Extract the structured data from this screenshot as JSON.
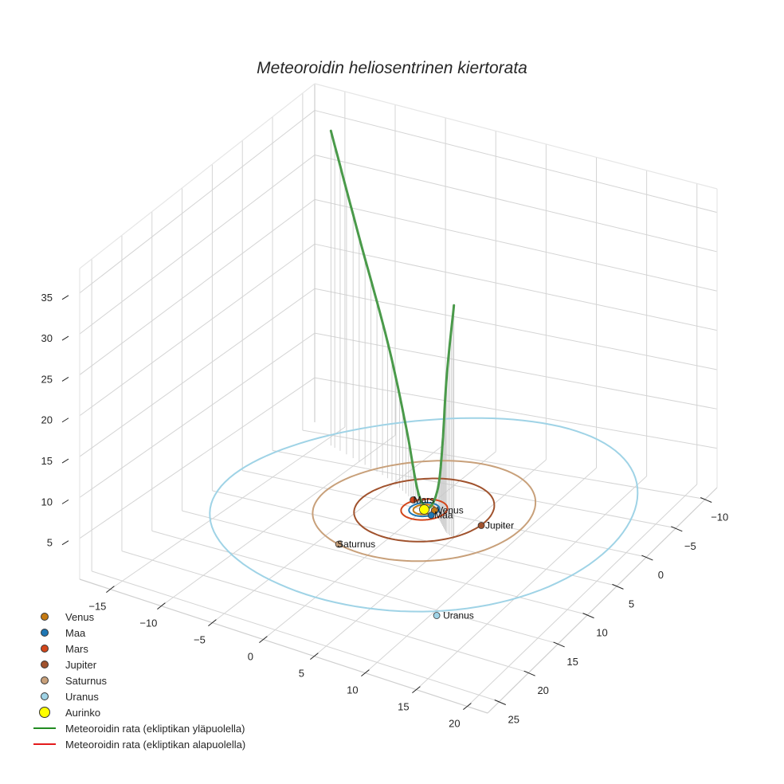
{
  "chart_data": {
    "type": "scatter3d",
    "title": "Meteoroidin heliosentrinen kiertorata",
    "xlabel": "",
    "ylabel": "",
    "zlabel": "",
    "x_ticks": [
      -15,
      -10,
      -5,
      0,
      5,
      10,
      15,
      20
    ],
    "y_ticks": [
      -10,
      -5,
      0,
      5,
      10,
      15,
      20,
      25
    ],
    "z_ticks": [
      5,
      10,
      15,
      20,
      25,
      30,
      35
    ],
    "xlim": [
      -18,
      22
    ],
    "ylim": [
      -12,
      27
    ],
    "zlim": [
      0,
      38
    ],
    "grid": true,
    "legend_position": "lower left",
    "planets": [
      {
        "name": "Venus",
        "color": "#c57a12",
        "orbit_radius": 0.72
      },
      {
        "name": "Maa",
        "color": "#1f77b4",
        "orbit_radius": 1.0
      },
      {
        "name": "Mars",
        "color": "#d2461b",
        "orbit_radius": 1.52
      },
      {
        "name": "Jupiter",
        "color": "#a0522d",
        "orbit_radius": 5.2
      },
      {
        "name": "Saturnus",
        "color": "#c8a07a",
        "orbit_radius": 9.5
      },
      {
        "name": "Uranus",
        "color": "#9fd3e6",
        "orbit_radius": 19.2
      }
    ],
    "sun": {
      "name": "Aurinko",
      "color": "#ffff00",
      "position": [
        0,
        0,
        0
      ]
    },
    "series": [
      {
        "name": "Meteoroidin rata (ekliptikan yläpuolella)",
        "color": "#228b22",
        "points_xyz": [
          [
            -14,
            -8,
            36
          ],
          [
            -10,
            -6,
            26
          ],
          [
            -6,
            -4,
            16
          ],
          [
            -3,
            -2,
            8
          ],
          [
            -1,
            -0.5,
            2
          ],
          [
            0,
            0,
            0.5
          ],
          [
            1,
            0.5,
            1
          ],
          [
            2,
            1,
            4
          ],
          [
            3,
            2,
            10
          ],
          [
            4,
            3,
            19
          ],
          [
            5,
            3.5,
            28
          ]
        ]
      },
      {
        "name": "Meteoroidin rata (ekliptikan alapuolella)",
        "color": "#e41a1c",
        "points_xyz": []
      }
    ]
  },
  "title": "Meteoroidin heliosentrinen kiertorata",
  "legend": {
    "items": [
      {
        "label": "Venus",
        "type": "dot",
        "color": "#c57a12"
      },
      {
        "label": "Maa",
        "type": "dot",
        "color": "#1f77b4"
      },
      {
        "label": "Mars",
        "type": "dot",
        "color": "#d2461b"
      },
      {
        "label": "Jupiter",
        "type": "dot",
        "color": "#a0522d"
      },
      {
        "label": "Saturnus",
        "type": "dot",
        "color": "#c8a07a"
      },
      {
        "label": "Uranus",
        "type": "dot",
        "color": "#9fd3e6"
      },
      {
        "label": "Aurinko",
        "type": "bigdot",
        "color": "#ffff00"
      },
      {
        "label": "Meteoroidin rata (ekliptikan yläpuolella)",
        "type": "line",
        "color": "#228b22"
      },
      {
        "label": "Meteoroidin rata (ekliptikan alapuolella)",
        "type": "line",
        "color": "#e41a1c"
      }
    ]
  },
  "labels": {
    "venus": "Venus",
    "maa": "Maa",
    "mars": "Mars",
    "jupiter": "Jupiter",
    "saturnus": "Saturnus",
    "uranus": "Uranus"
  },
  "axis_ticks": {
    "x": [
      "−15",
      "−10",
      "−5",
      "0",
      "5",
      "10",
      "15",
      "20"
    ],
    "y": [
      "−10",
      "−5",
      "0",
      "5",
      "10",
      "15",
      "20",
      "25"
    ],
    "z": [
      "5",
      "10",
      "15",
      "20",
      "25",
      "30",
      "35"
    ]
  }
}
